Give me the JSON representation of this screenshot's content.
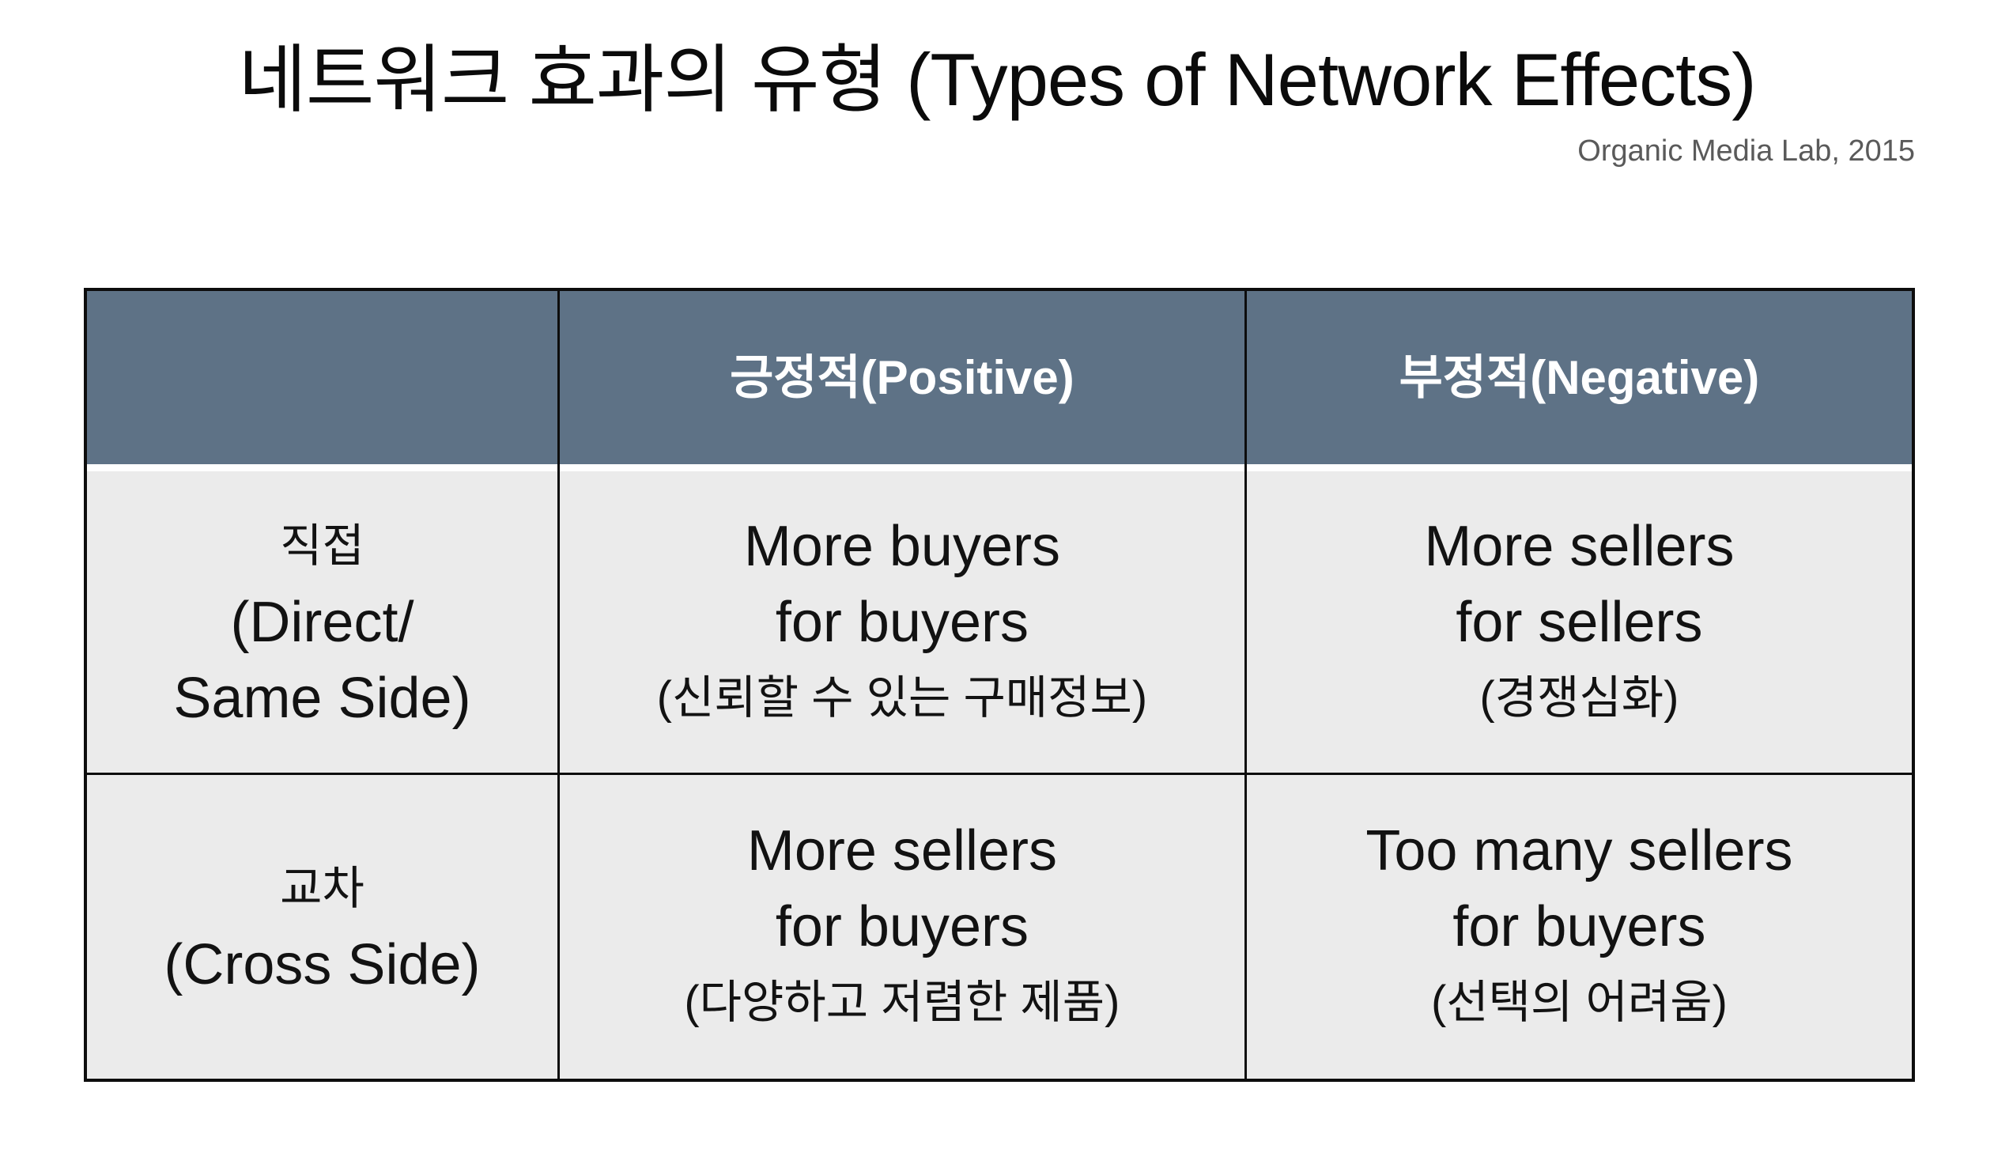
{
  "slide": {
    "title": "네트워크 효과의 유형 (Types of Network Effects)",
    "attribution": "Organic Media Lab, 2015"
  },
  "colors": {
    "header_bg": "#5e7286",
    "header_text": "#ffffff",
    "cell_bg": "#ebebeb",
    "border": "#0d0d0d",
    "attribution_text": "#5a5a5a"
  },
  "table": {
    "columns": [
      "",
      "긍정적(Positive)",
      "부정적(Negative)"
    ],
    "rows": [
      {
        "label": {
          "lines": [
            "직접",
            "(Direct/",
            "Same Side)"
          ]
        },
        "positive": {
          "lines": [
            "More buyers",
            "for buyers",
            "(신뢰할 수 있는 구매정보)"
          ]
        },
        "negative": {
          "lines": [
            "More sellers",
            "for sellers",
            "(경쟁심화)"
          ]
        }
      },
      {
        "label": {
          "lines": [
            "교차",
            "(Cross Side)"
          ]
        },
        "positive": {
          "lines": [
            "More sellers",
            "for buyers",
            "(다양하고 저렴한 제품)"
          ]
        },
        "negative": {
          "lines": [
            "Too many sellers",
            "for buyers",
            "(선택의 어려움)"
          ]
        }
      }
    ]
  }
}
